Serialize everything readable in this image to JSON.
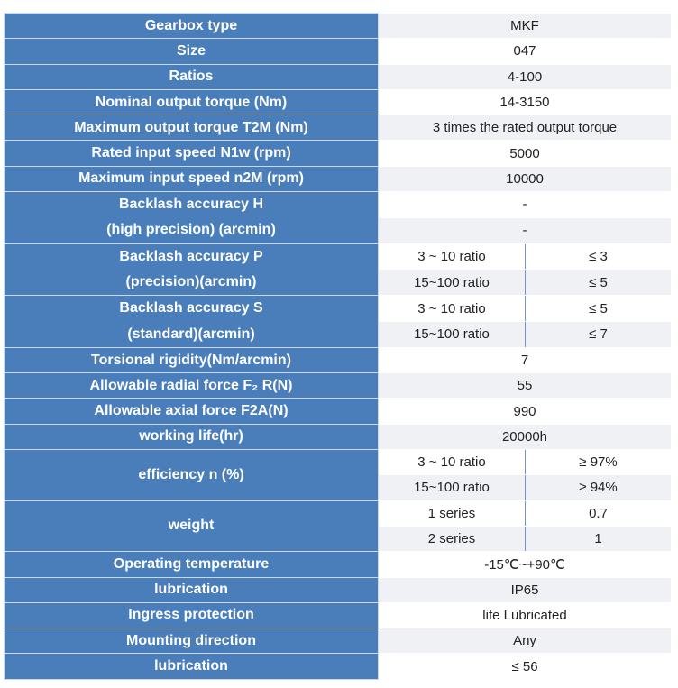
{
  "table": {
    "rows": [
      {
        "label": "Gearbox type",
        "value": "MKF"
      },
      {
        "label": "Size",
        "value": "047"
      },
      {
        "label": "Ratios",
        "value": "4-100"
      },
      {
        "label": "Nominal output torque (Nm)",
        "value": "14-3150"
      },
      {
        "label": "Maximum output torque T2M (Nm)",
        "value": "3 times the rated output torque"
      },
      {
        "label": "Rated input speed N1w    (rpm)",
        "value": "5000"
      },
      {
        "label": "Maximum input speed n2M (rpm)",
        "value": "10000"
      },
      {
        "label": [
          "Backlash accuracy    H",
          "(high precision)    (arcmin)"
        ],
        "values": [
          "-",
          "-"
        ]
      },
      {
        "label": [
          "Backlash accuracy    P",
          "(precision)(arcmin)"
        ],
        "sub": [
          [
            "3 ~ 10 ratio",
            "≤ 3"
          ],
          [
            "15~100 ratio",
            "≤ 5"
          ]
        ]
      },
      {
        "label": [
          "Backlash accuracy    S",
          "(standard)(arcmin)"
        ],
        "sub": [
          [
            "3 ~ 10 ratio",
            "≤ 5"
          ],
          [
            "15~100 ratio",
            "≤ 7"
          ]
        ]
      },
      {
        "label": "Torsional rigidity(Nm/arcmin)",
        "value": "7"
      },
      {
        "label": "Allowable radial force F₂   R(N)",
        "value": "55"
      },
      {
        "label": "Allowable axial force F2A(N)",
        "value": "990"
      },
      {
        "label": "working life(hr)",
        "value": "20000h"
      },
      {
        "label": "efficiency n (%)",
        "sub": [
          [
            "3 ~ 10 ratio",
            "≥ 97%"
          ],
          [
            "15~100 ratio",
            "≥ 94%"
          ]
        ]
      },
      {
        "label": "weight",
        "sub": [
          [
            "1 series",
            "0.7"
          ],
          [
            "2 series",
            "1"
          ]
        ]
      },
      {
        "label": "Operating temperature",
        "value": "-15℃~+90℃"
      },
      {
        "label": "lubrication",
        "value": "IP65"
      },
      {
        "label": "Ingress protection",
        "value": "life Lubricated"
      },
      {
        "label": "Mounting direction",
        "value": "Any"
      },
      {
        "label": "lubrication",
        "value": "≤ 56"
      }
    ]
  }
}
